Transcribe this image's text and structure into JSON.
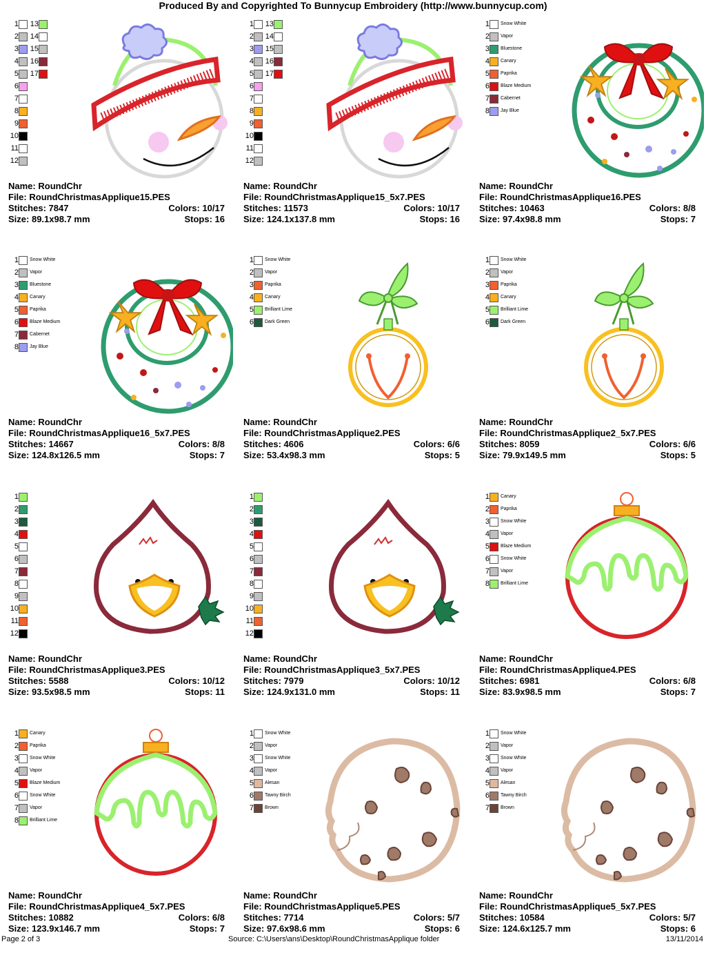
{
  "header": "Produced By and Copyrighted To Bunnycup Embroidery (http://www.bunnycup.com)",
  "labels": {
    "name": "Name:",
    "file": "File:",
    "stitches": "Stitches:",
    "colors": "Colors:",
    "size": "Size:",
    "stops": "Stops:"
  },
  "cells": [
    {
      "design": "snowman",
      "name": "RoundChr",
      "file": "RoundChristmasApplique15.PES",
      "stitches": "7847",
      "colors": "10/17",
      "size": "89.1x98.7 mm",
      "stops": "16",
      "swatches": [
        {
          "num": "1",
          "color": "#ffffff",
          "name": ""
        },
        {
          "num": "2",
          "color": "#c0c0c0",
          "name": ""
        },
        {
          "num": "3",
          "color": "#9c9cf0",
          "name": ""
        },
        {
          "num": "4",
          "color": "#c0c0c0",
          "name": ""
        },
        {
          "num": "5",
          "color": "#c0c0c0",
          "name": ""
        },
        {
          "num": "6",
          "color": "#f7a0f0",
          "name": ""
        },
        {
          "num": "7",
          "color": "#ffffff",
          "name": ""
        },
        {
          "num": "8",
          "color": "#f8b020",
          "name": ""
        },
        {
          "num": "9",
          "color": "#f06030",
          "name": ""
        },
        {
          "num": "10",
          "color": "#000000",
          "name": ""
        },
        {
          "num": "11",
          "color": "#ffffff",
          "name": ""
        },
        {
          "num": "12",
          "color": "#c0c0c0",
          "name": ""
        },
        {
          "num": "13",
          "color": "#9cf070",
          "name": ""
        },
        {
          "num": "14",
          "color": "#ffffff",
          "name": ""
        },
        {
          "num": "15",
          "color": "#c0c0c0",
          "name": ""
        },
        {
          "num": "16",
          "color": "#8a2a3a",
          "name": ""
        },
        {
          "num": "17",
          "color": "#e01010",
          "name": ""
        }
      ]
    },
    {
      "design": "snowman",
      "name": "RoundChr",
      "file": "RoundChristmasApplique15_5x7.PES",
      "stitches": "11573",
      "colors": "10/17",
      "size": "124.1x137.8 mm",
      "stops": "16",
      "swatches": [
        {
          "num": "1",
          "color": "#ffffff",
          "name": ""
        },
        {
          "num": "2",
          "color": "#c0c0c0",
          "name": ""
        },
        {
          "num": "3",
          "color": "#9c9cf0",
          "name": ""
        },
        {
          "num": "4",
          "color": "#c0c0c0",
          "name": ""
        },
        {
          "num": "5",
          "color": "#c0c0c0",
          "name": ""
        },
        {
          "num": "6",
          "color": "#f7a0f0",
          "name": ""
        },
        {
          "num": "7",
          "color": "#ffffff",
          "name": ""
        },
        {
          "num": "8",
          "color": "#f8b020",
          "name": ""
        },
        {
          "num": "9",
          "color": "#f06030",
          "name": ""
        },
        {
          "num": "10",
          "color": "#000000",
          "name": ""
        },
        {
          "num": "11",
          "color": "#ffffff",
          "name": ""
        },
        {
          "num": "12",
          "color": "#c0c0c0",
          "name": ""
        },
        {
          "num": "13",
          "color": "#9cf070",
          "name": ""
        },
        {
          "num": "14",
          "color": "#ffffff",
          "name": ""
        },
        {
          "num": "15",
          "color": "#c0c0c0",
          "name": ""
        },
        {
          "num": "16",
          "color": "#8a2a3a",
          "name": ""
        },
        {
          "num": "17",
          "color": "#e01010",
          "name": ""
        }
      ]
    },
    {
      "design": "wreath",
      "name": "RoundChr",
      "file": "RoundChristmasApplique16.PES",
      "stitches": "10463",
      "colors": "8/8",
      "size": "97.4x98.8 mm",
      "stops": "7",
      "swatches": [
        {
          "num": "1",
          "color": "#ffffff",
          "name": "Snow White"
        },
        {
          "num": "2",
          "color": "#c0c0c0",
          "name": "Vapor"
        },
        {
          "num": "3",
          "color": "#2e9c6e",
          "name": "Bluestone"
        },
        {
          "num": "4",
          "color": "#f8b020",
          "name": "Canary"
        },
        {
          "num": "5",
          "color": "#f06030",
          "name": "Paprika"
        },
        {
          "num": "6",
          "color": "#e01010",
          "name": "Blaze Medium"
        },
        {
          "num": "7",
          "color": "#8a2a3a",
          "name": "Cabernet"
        },
        {
          "num": "8",
          "color": "#9c9cf0",
          "name": "Jay Blue"
        }
      ]
    },
    {
      "design": "wreath",
      "name": "RoundChr",
      "file": "RoundChristmasApplique16_5x7.PES",
      "stitches": "14667",
      "colors": "8/8",
      "size": "124.8x126.5 mm",
      "stops": "7",
      "swatches": [
        {
          "num": "1",
          "color": "#ffffff",
          "name": "Snow White"
        },
        {
          "num": "2",
          "color": "#c0c0c0",
          "name": "Vapor"
        },
        {
          "num": "3",
          "color": "#2e9c6e",
          "name": "Bluestone"
        },
        {
          "num": "4",
          "color": "#f8b020",
          "name": "Canary"
        },
        {
          "num": "5",
          "color": "#f06030",
          "name": "Paprika"
        },
        {
          "num": "6",
          "color": "#e01010",
          "name": "Blaze Medium"
        },
        {
          "num": "7",
          "color": "#8a2a3a",
          "name": "Cabernet"
        },
        {
          "num": "8",
          "color": "#9c9cf0",
          "name": "Jay Blue"
        }
      ]
    },
    {
      "design": "bell",
      "name": "RoundChr",
      "file": "RoundChristmasApplique2.PES",
      "stitches": "4606",
      "colors": "6/6",
      "size": "53.4x98.3 mm",
      "stops": "5",
      "swatches": [
        {
          "num": "1",
          "color": "#ffffff",
          "name": "Snow White"
        },
        {
          "num": "2",
          "color": "#c0c0c0",
          "name": "Vapor"
        },
        {
          "num": "3",
          "color": "#f06030",
          "name": "Paprika"
        },
        {
          "num": "4",
          "color": "#f8b020",
          "name": "Canary"
        },
        {
          "num": "5",
          "color": "#9cf070",
          "name": "Brilliant Lime"
        },
        {
          "num": "6",
          "color": "#1e5a3e",
          "name": "Dark Green"
        }
      ]
    },
    {
      "design": "bell",
      "name": "RoundChr",
      "file": "RoundChristmasApplique2_5x7.PES",
      "stitches": "8059",
      "colors": "6/6",
      "size": "79.9x149.5 mm",
      "stops": "5",
      "swatches": [
        {
          "num": "1",
          "color": "#ffffff",
          "name": "Snow White"
        },
        {
          "num": "2",
          "color": "#c0c0c0",
          "name": "Vapor"
        },
        {
          "num": "3",
          "color": "#f06030",
          "name": "Paprika"
        },
        {
          "num": "4",
          "color": "#f8b020",
          "name": "Canary"
        },
        {
          "num": "5",
          "color": "#9cf070",
          "name": "Brilliant Lime"
        },
        {
          "num": "6",
          "color": "#1e5a3e",
          "name": "Dark Green"
        }
      ]
    },
    {
      "design": "bird",
      "name": "RoundChr",
      "file": "RoundChristmasApplique3.PES",
      "stitches": "5588",
      "colors": "10/12",
      "size": "93.5x98.5 mm",
      "stops": "11",
      "swatches": [
        {
          "num": "1",
          "color": "#9cf070",
          "name": ""
        },
        {
          "num": "2",
          "color": "#2e9c6e",
          "name": ""
        },
        {
          "num": "3",
          "color": "#1e5a3e",
          "name": ""
        },
        {
          "num": "4",
          "color": "#e01010",
          "name": ""
        },
        {
          "num": "5",
          "color": "#ffffff",
          "name": ""
        },
        {
          "num": "6",
          "color": "#c0c0c0",
          "name": ""
        },
        {
          "num": "7",
          "color": "#8a2a3a",
          "name": ""
        },
        {
          "num": "8",
          "color": "#ffffff",
          "name": ""
        },
        {
          "num": "9",
          "color": "#c0c0c0",
          "name": ""
        },
        {
          "num": "10",
          "color": "#f8b020",
          "name": ""
        },
        {
          "num": "11",
          "color": "#f06030",
          "name": ""
        },
        {
          "num": "12",
          "color": "#000000",
          "name": ""
        }
      ]
    },
    {
      "design": "bird",
      "name": "RoundChr",
      "file": "RoundChristmasApplique3_5x7.PES",
      "stitches": "7979",
      "colors": "10/12",
      "size": "124.9x131.0 mm",
      "stops": "11",
      "swatches": [
        {
          "num": "1",
          "color": "#9cf070",
          "name": ""
        },
        {
          "num": "2",
          "color": "#2e9c6e",
          "name": ""
        },
        {
          "num": "3",
          "color": "#1e5a3e",
          "name": ""
        },
        {
          "num": "4",
          "color": "#e01010",
          "name": ""
        },
        {
          "num": "5",
          "color": "#ffffff",
          "name": ""
        },
        {
          "num": "6",
          "color": "#c0c0c0",
          "name": ""
        },
        {
          "num": "7",
          "color": "#8a2a3a",
          "name": ""
        },
        {
          "num": "8",
          "color": "#ffffff",
          "name": ""
        },
        {
          "num": "9",
          "color": "#c0c0c0",
          "name": ""
        },
        {
          "num": "10",
          "color": "#f8b020",
          "name": ""
        },
        {
          "num": "11",
          "color": "#f06030",
          "name": ""
        },
        {
          "num": "12",
          "color": "#000000",
          "name": ""
        }
      ]
    },
    {
      "design": "ornament",
      "name": "RoundChr",
      "file": "RoundChristmasApplique4.PES",
      "stitches": "6981",
      "colors": "6/8",
      "size": "83.9x98.5 mm",
      "stops": "7",
      "swatches": [
        {
          "num": "1",
          "color": "#f8b020",
          "name": "Canary"
        },
        {
          "num": "2",
          "color": "#f06030",
          "name": "Paprika"
        },
        {
          "num": "3",
          "color": "#ffffff",
          "name": "Snow White"
        },
        {
          "num": "4",
          "color": "#c0c0c0",
          "name": "Vapor"
        },
        {
          "num": "5",
          "color": "#e01010",
          "name": "Blaze Medium"
        },
        {
          "num": "6",
          "color": "#ffffff",
          "name": "Snow White"
        },
        {
          "num": "7",
          "color": "#c0c0c0",
          "name": "Vapor"
        },
        {
          "num": "8",
          "color": "#9cf070",
          "name": "Brilliant Lime"
        }
      ]
    },
    {
      "design": "ornament",
      "name": "RoundChr",
      "file": "RoundChristmasApplique4_5x7.PES",
      "stitches": "10882",
      "colors": "6/8",
      "size": "123.9x146.7 mm",
      "stops": "7",
      "swatches": [
        {
          "num": "1",
          "color": "#f8b020",
          "name": "Canary"
        },
        {
          "num": "2",
          "color": "#f06030",
          "name": "Paprika"
        },
        {
          "num": "3",
          "color": "#ffffff",
          "name": "Snow White"
        },
        {
          "num": "4",
          "color": "#c0c0c0",
          "name": "Vapor"
        },
        {
          "num": "5",
          "color": "#e01010",
          "name": "Blaze Medium"
        },
        {
          "num": "6",
          "color": "#ffffff",
          "name": "Snow White"
        },
        {
          "num": "7",
          "color": "#c0c0c0",
          "name": "Vapor"
        },
        {
          "num": "8",
          "color": "#9cf070",
          "name": "Brilliant Lime"
        }
      ]
    },
    {
      "design": "cookie",
      "name": "RoundChr",
      "file": "RoundChristmasApplique5.PES",
      "stitches": "7714",
      "colors": "5/7",
      "size": "97.6x98.6 mm",
      "stops": "6",
      "swatches": [
        {
          "num": "1",
          "color": "#ffffff",
          "name": "Snow White"
        },
        {
          "num": "2",
          "color": "#c0c0c0",
          "name": "Vapor"
        },
        {
          "num": "3",
          "color": "#ffffff",
          "name": "Snow White"
        },
        {
          "num": "4",
          "color": "#c0c0c0",
          "name": "Vapor"
        },
        {
          "num": "5",
          "color": "#e0b8a0",
          "name": "Alesan"
        },
        {
          "num": "6",
          "color": "#a07a68",
          "name": "Tawny Birch"
        },
        {
          "num": "7",
          "color": "#6a4438",
          "name": "Brown"
        }
      ]
    },
    {
      "design": "cookie",
      "name": "RoundChr",
      "file": "RoundChristmasApplique5_5x7.PES",
      "stitches": "10584",
      "colors": "5/7",
      "size": "124.6x125.7 mm",
      "stops": "6",
      "swatches": [
        {
          "num": "1",
          "color": "#ffffff",
          "name": "Snow White"
        },
        {
          "num": "2",
          "color": "#c0c0c0",
          "name": "Vapor"
        },
        {
          "num": "3",
          "color": "#ffffff",
          "name": "Snow White"
        },
        {
          "num": "4",
          "color": "#c0c0c0",
          "name": "Vapor"
        },
        {
          "num": "5",
          "color": "#e0b8a0",
          "name": "Alesan"
        },
        {
          "num": "6",
          "color": "#a07a68",
          "name": "Tawny Birch"
        },
        {
          "num": "7",
          "color": "#6a4438",
          "name": "Brown"
        }
      ]
    }
  ],
  "footer": {
    "page": "Page 2 of 3",
    "source": "Source: C:\\Users\\ans\\Desktop\\RoundChristmasApplique folder",
    "date": "13/11/2014"
  }
}
